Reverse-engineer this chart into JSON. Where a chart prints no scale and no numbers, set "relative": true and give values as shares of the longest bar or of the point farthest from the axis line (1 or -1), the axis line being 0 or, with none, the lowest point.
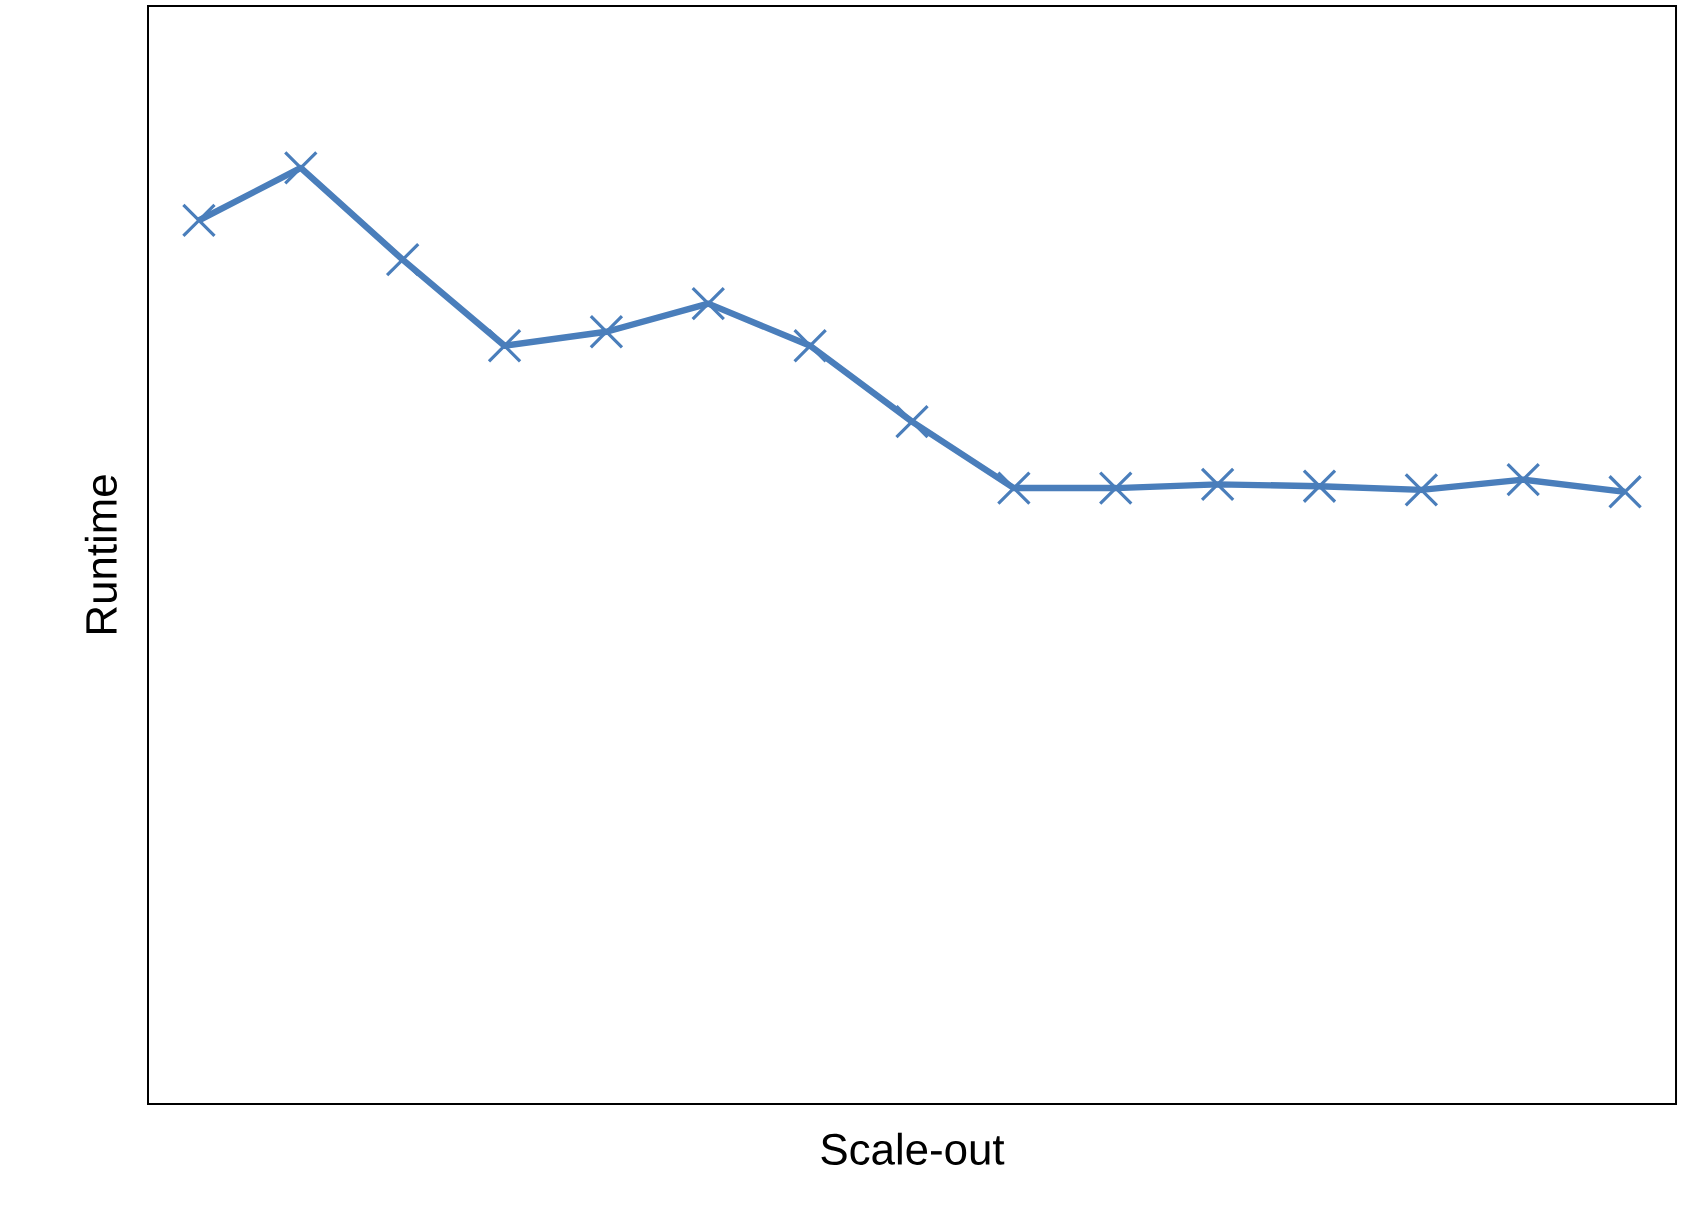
{
  "chart_data": {
    "type": "line",
    "relative": true,
    "xlabel": "Scale-out",
    "ylabel": "Runtime",
    "categories": [
      null,
      null,
      null,
      null,
      null,
      null,
      null,
      null,
      null,
      null,
      null,
      null,
      null,
      null,
      null
    ],
    "values": [
      0.944,
      1,
      0.902,
      0.81,
      0.825,
      0.855,
      0.81,
      0.729,
      0.658,
      0.658,
      0.662,
      0.66,
      0.656,
      0.667,
      0.654
    ],
    "color": "#4a7ebb",
    "marker": "cross"
  }
}
